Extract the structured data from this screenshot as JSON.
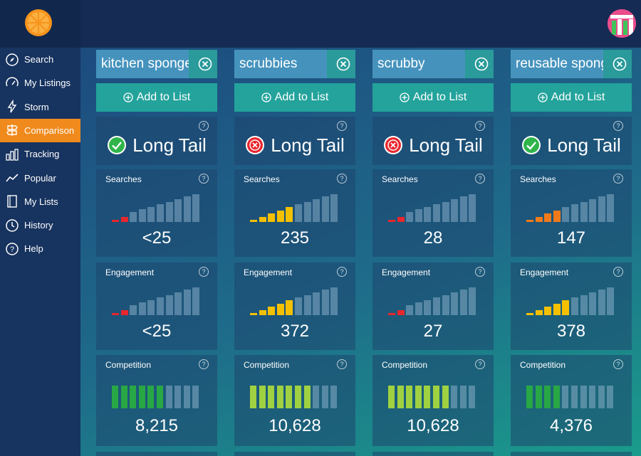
{
  "sidebar": {
    "items": [
      {
        "label": "Search",
        "icon": "compass-icon",
        "active": false
      },
      {
        "label": "My Listings",
        "icon": "gauge-icon",
        "active": false
      },
      {
        "label": "Storm",
        "icon": "lightning-icon",
        "active": false
      },
      {
        "label": "Comparison",
        "icon": "signpost-icon",
        "active": true
      },
      {
        "label": "Tracking",
        "icon": "bar-chart-icon",
        "active": false
      },
      {
        "label": "Popular",
        "icon": "trend-line-icon",
        "active": false
      },
      {
        "label": "My Lists",
        "icon": "document-icon",
        "active": false
      },
      {
        "label": "History",
        "icon": "clock-icon",
        "active": false
      },
      {
        "label": "Help",
        "icon": "question-icon",
        "active": false
      }
    ]
  },
  "add_label": "Add to List",
  "longtail_label": "Long Tail",
  "searches_label": "Searches",
  "engagement_label": "Engagement",
  "competition_label": "Competition",
  "help_glyph": "?",
  "columns": [
    {
      "keyword": "kitchen sponge",
      "longtail": true,
      "searches": {
        "value": "<25",
        "level": 2,
        "color": "#e8262d"
      },
      "engagement": {
        "value": "<25",
        "level": 2,
        "color": "#e8262d"
      },
      "competition": {
        "value": "8,215",
        "level": 6,
        "color": "#28a745"
      }
    },
    {
      "keyword": "scrubbies",
      "longtail": false,
      "searches": {
        "value": "235",
        "level": 5,
        "color": "#f5c000"
      },
      "engagement": {
        "value": "372",
        "level": 5,
        "color": "#f5c000"
      },
      "competition": {
        "value": "10,628",
        "level": 7,
        "color": "#9fd141"
      }
    },
    {
      "keyword": "scrubby",
      "longtail": false,
      "searches": {
        "value": "28",
        "level": 2,
        "color": "#e8262d"
      },
      "engagement": {
        "value": "27",
        "level": 2,
        "color": "#e8262d"
      },
      "competition": {
        "value": "10,628",
        "level": 7,
        "color": "#9fd141"
      }
    },
    {
      "keyword": "reusable sponge",
      "longtail": true,
      "searches": {
        "value": "147",
        "level": 4,
        "color": "#f07a1a"
      },
      "engagement": {
        "value": "378",
        "level": 5,
        "color": "#f5c000"
      },
      "competition": {
        "value": "4,376",
        "level": 4,
        "color": "#28a745"
      }
    }
  ]
}
